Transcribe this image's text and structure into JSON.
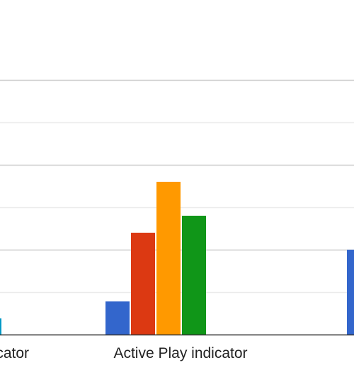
{
  "chart_data": {
    "type": "bar",
    "categories": [
      "indicator",
      "Active Play indicator",
      ""
    ],
    "category_labels": [
      "cator",
      "Active Play indicator",
      ""
    ],
    "series": [
      {
        "color": "#3366cc",
        "values": [
          null,
          0.78,
          2.0
        ]
      },
      {
        "color": "#dc3912",
        "values": [
          null,
          2.4,
          null
        ]
      },
      {
        "color": "#ff9900",
        "values": [
          null,
          3.6,
          null
        ]
      },
      {
        "color": "#109618",
        "values": [
          null,
          2.8,
          null
        ]
      },
      {
        "color": "#0099c6",
        "values": [
          0.38,
          null,
          null
        ]
      }
    ],
    "ylim": [
      0,
      6
    ],
    "gridlines": [
      1,
      2,
      3,
      4,
      5,
      6
    ],
    "major_gridlines": [
      2,
      4,
      6
    ],
    "grid": true,
    "legend": "none"
  }
}
